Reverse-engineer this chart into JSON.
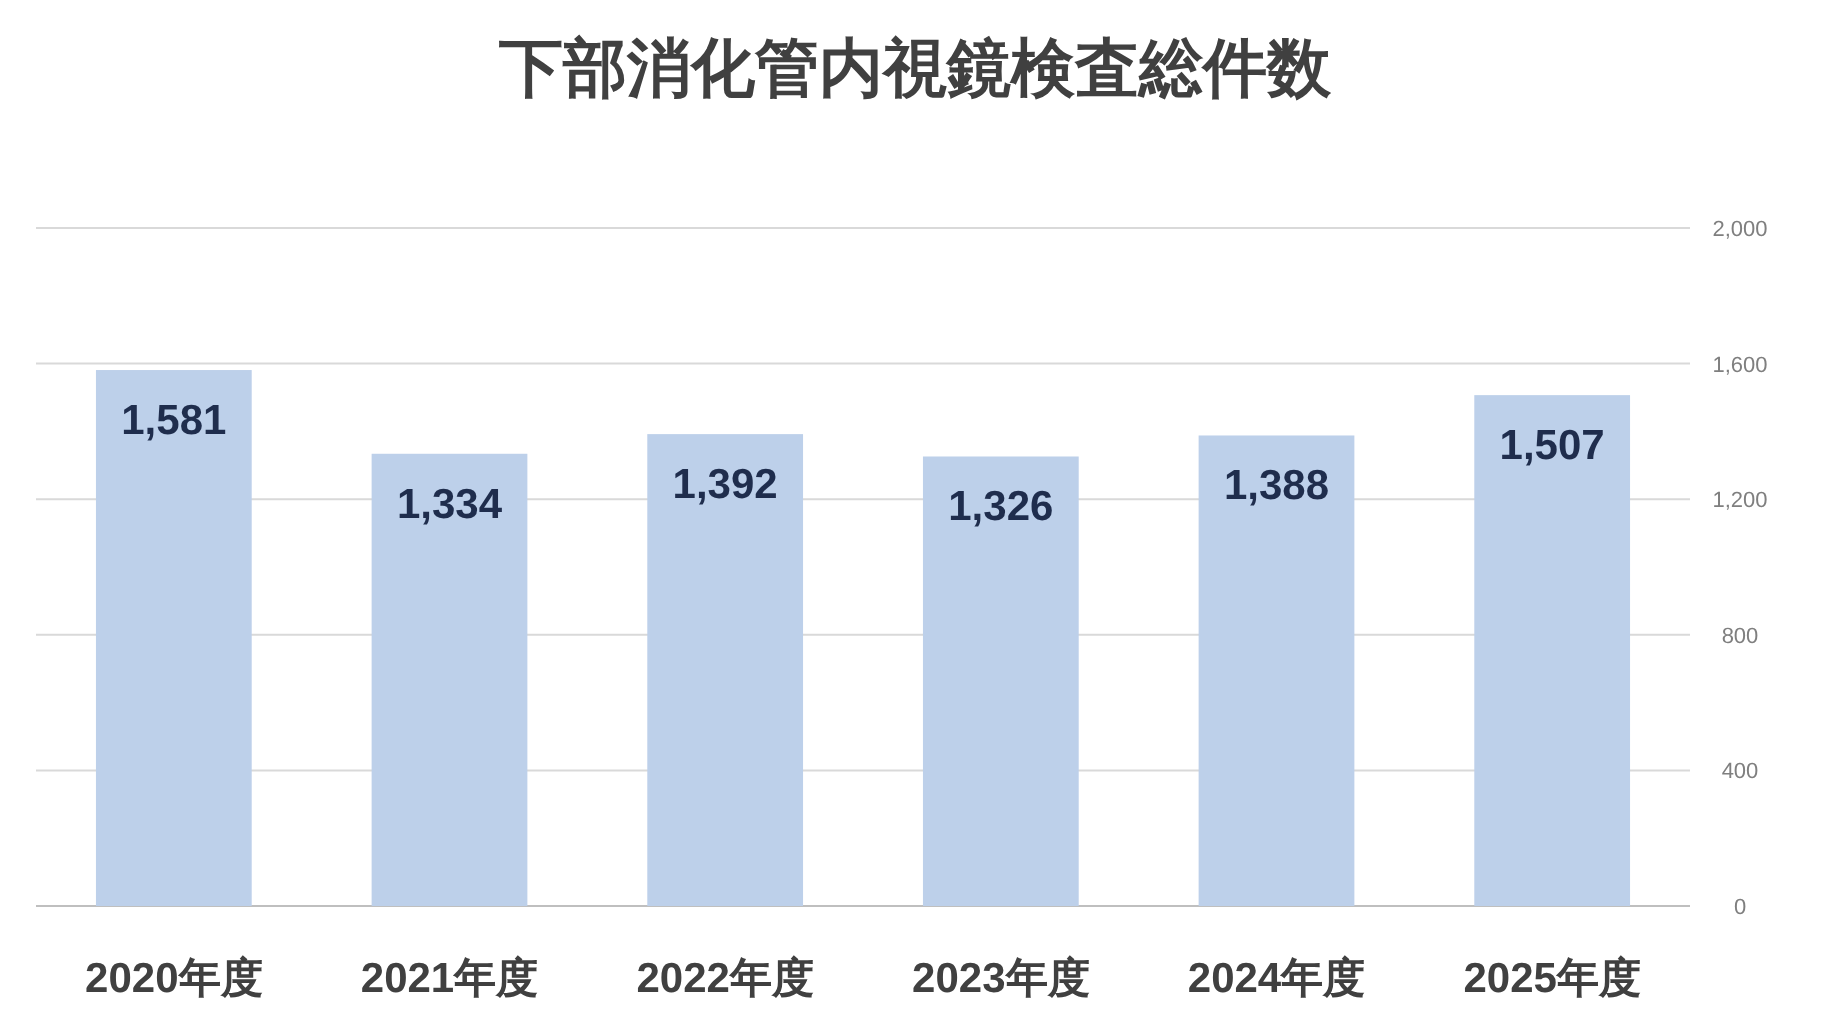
{
  "chart_data": {
    "type": "bar",
    "title": "下部消化管内視鏡検査総件数",
    "categories": [
      "2020年度",
      "2021年度",
      "2022年度",
      "2023年度",
      "2024年度",
      "2025年度"
    ],
    "values": [
      1581,
      1334,
      1392,
      1326,
      1388,
      1507
    ],
    "color": "#bdd0ea",
    "ylim": [
      0,
      2000
    ],
    "yticks": [
      0,
      400,
      800,
      {
        "value": 1200,
        "label": "1,200"
      },
      {
        "value": 1600,
        "label": "1,600"
      },
      {
        "value": 2000,
        "label": "2,000"
      }
    ],
    "grid": "y",
    "value_labels": [
      "1,581",
      "1,334",
      "1,392",
      "1,326",
      "1,388",
      "1,507"
    ]
  }
}
